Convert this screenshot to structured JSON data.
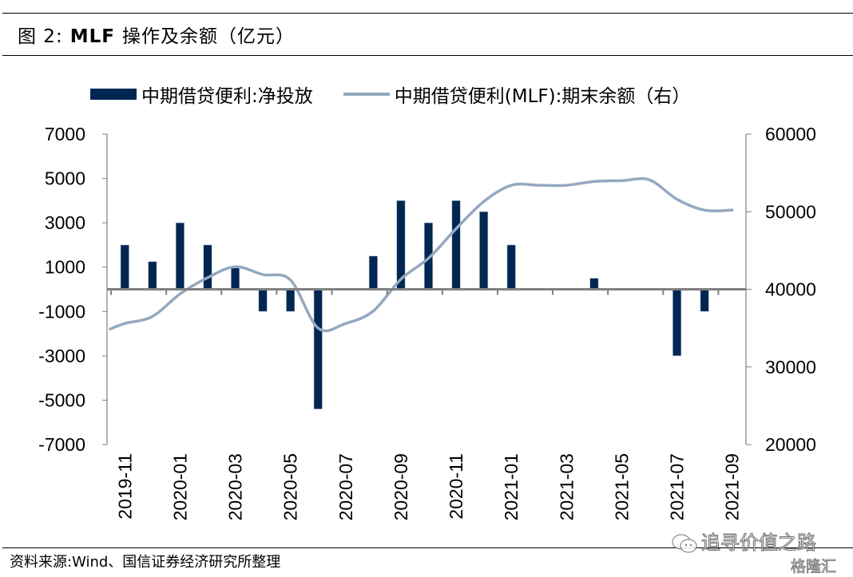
{
  "figure": {
    "number_label": "图 2:",
    "title_bold": "MLF",
    "title_rest": "操作及余额（亿元）"
  },
  "legend": {
    "items": [
      {
        "label": "中期借贷便利:净投放",
        "type": "bar",
        "color": "#002652"
      },
      {
        "label": "中期借贷便利(MLF):期末余额（右）",
        "type": "line",
        "color": "#94A8BF"
      }
    ]
  },
  "source": "资料来源:Wind、国信证券经济研究所整理",
  "watermark": {
    "line1": "追寻价值之路",
    "line2": "格隆汇",
    "icon": "wechat-icon"
  },
  "chart_data": {
    "type": "bar+line",
    "title": "MLF 操作及余额（亿元）",
    "xlabel": "",
    "ylabel": "",
    "categories": [
      "2019-11",
      "2019-12",
      "2020-01",
      "2020-02",
      "2020-03",
      "2020-04",
      "2020-05",
      "2020-06",
      "2020-07",
      "2020-08",
      "2020-09",
      "2020-10",
      "2020-11",
      "2020-12",
      "2021-01",
      "2021-02",
      "2021-03",
      "2021-04",
      "2021-05",
      "2021-06",
      "2021-07",
      "2021-08",
      "2021-09"
    ],
    "x_tick_labels": [
      "2019-11",
      "2020-01",
      "2020-03",
      "2020-05",
      "2020-07",
      "2020-09",
      "2020-11",
      "2021-01",
      "2021-03",
      "2021-05",
      "2021-07",
      "2021-09"
    ],
    "series": [
      {
        "name": "中期借贷便利:净投放",
        "type": "bar",
        "axis": "left",
        "color": "#002652",
        "values": [
          2000,
          1250,
          3000,
          2000,
          1000,
          -1000,
          -1000,
          -5400,
          0,
          1500,
          4000,
          3000,
          4000,
          3500,
          2000,
          0,
          0,
          500,
          0,
          0,
          -3000,
          -1000,
          0
        ]
      },
      {
        "name": "中期借贷便利(MLF):期末余额（右）",
        "type": "line",
        "axis": "right",
        "color": "#94A8BF",
        "values": [
          35600,
          36500,
          39400,
          41500,
          42900,
          41900,
          41200,
          35000,
          35600,
          37200,
          41300,
          44000,
          47800,
          51300,
          53400,
          53400,
          53400,
          53900,
          54000,
          54100,
          51600,
          50200,
          50200
        ]
      }
    ],
    "y_left": {
      "min": -7000,
      "max": 7000,
      "ticks": [
        7000,
        5000,
        3000,
        1000,
        -1000,
        -3000,
        -5000,
        -7000
      ]
    },
    "y_right": {
      "min": 20000,
      "max": 60000,
      "ticks": [
        60000,
        50000,
        40000,
        30000,
        20000
      ]
    },
    "grid": false,
    "legend_position": "top"
  }
}
